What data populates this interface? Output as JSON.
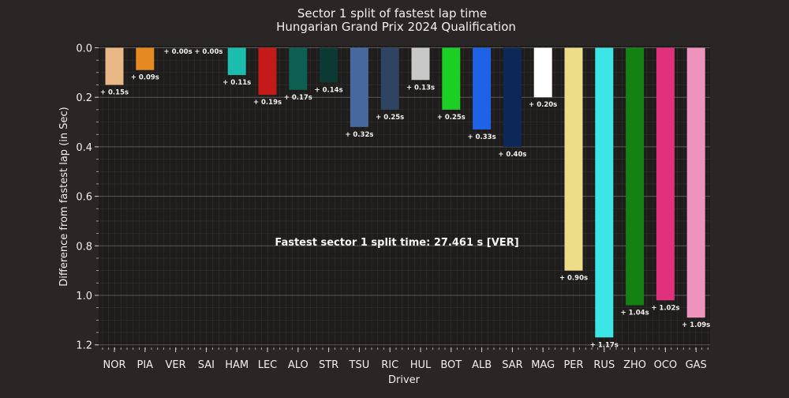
{
  "chart_data": {
    "type": "bar",
    "title": "Sector 1 split of fastest lap time",
    "subtitle": "Hungarian Grand Prix 2024 Qualification",
    "xlabel": "Driver",
    "ylabel": "Difference from fastest lap (in Sec)",
    "ylim": [
      0.0,
      1.2
    ],
    "y_inverted": true,
    "yticks": [
      "0.0",
      "0.2",
      "0.4",
      "0.6",
      "0.8",
      "1.0",
      "1.2"
    ],
    "grid": true,
    "annotation": "Fastest sector 1 split time: 27.461 s [VER]",
    "categories": [
      "NOR",
      "PIA",
      "VER",
      "SAI",
      "HAM",
      "LEC",
      "ALO",
      "STR",
      "TSU",
      "RIC",
      "HUL",
      "BOT",
      "ALB",
      "SAR",
      "MAG",
      "PER",
      "RUS",
      "ZHO",
      "OCO",
      "GAS"
    ],
    "values": [
      0.15,
      0.09,
      0.0,
      0.0,
      0.11,
      0.19,
      0.17,
      0.14,
      0.32,
      0.25,
      0.13,
      0.25,
      0.33,
      0.4,
      0.2,
      0.9,
      1.17,
      1.04,
      1.02,
      1.09
    ],
    "labels": [
      "+ 0.15s",
      "+ 0.09s",
      "+ 0.00s",
      "+ 0.00s",
      "+ 0.11s",
      "+ 0.19s",
      "+ 0.17s",
      "+ 0.14s",
      "+ 0.32s",
      "+ 0.25s",
      "+ 0.13s",
      "+ 0.25s",
      "+ 0.33s",
      "+ 0.40s",
      "+ 0.20s",
      "+ 0.90s",
      "+ 1.17s",
      "+ 1.04s",
      "+ 1.02s",
      "+ 1.09s"
    ],
    "colors": [
      "#E8B887",
      "#E48A20",
      "#2A2A48",
      "#CC1E1E",
      "#1CBDAE",
      "#C41A1A",
      "#0E5E52",
      "#0C3A32",
      "#46689E",
      "#2F4462",
      "#C8C8C8",
      "#1BCF24",
      "#2062E6",
      "#0C2857",
      "#FFFFFF",
      "#EDDD88",
      "#3CE6E6",
      "#138213",
      "#E1317D",
      "#EE93BC"
    ]
  }
}
